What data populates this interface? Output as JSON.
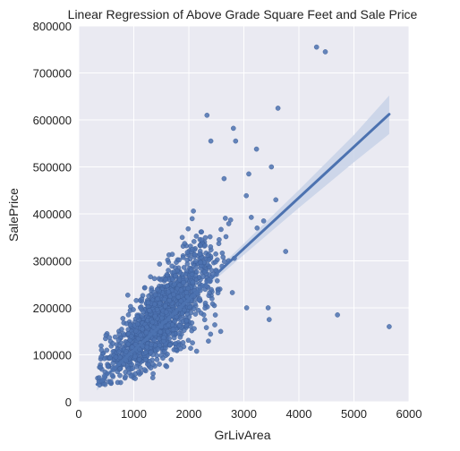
{
  "chart_data": {
    "type": "scatter",
    "title": "Linear Regression of Above Grade Square Feet and Sale Price",
    "xlabel": "GrLivArea",
    "ylabel": "SalePrice",
    "xlim": [
      0,
      6000
    ],
    "ylim": [
      0,
      800000
    ],
    "xticks": [
      "0",
      "1000",
      "2000",
      "3000",
      "4000",
      "5000",
      "6000"
    ],
    "yticks": [
      "0",
      "100000",
      "200000",
      "300000",
      "400000",
      "500000",
      "600000",
      "700000",
      "800000"
    ],
    "grid": true,
    "background_color": "#EAEAF2",
    "point_color": "#4C72B0",
    "line_color": "#4C72B0",
    "band_color": "#C8D2E8",
    "regression": {
      "x": [
        330,
        5640
      ],
      "y": [
        37000,
        612000
      ]
    },
    "confidence_band": {
      "x": [
        330,
        1000,
        1500,
        2000,
        3000,
        4000,
        5000,
        5640
      ],
      "lower": [
        24000,
        103000,
        158000,
        211000,
        313000,
        413000,
        510000,
        570000
      ],
      "upper": [
        50000,
        119000,
        170000,
        224000,
        337000,
        451000,
        568000,
        652000
      ]
    },
    "outliers": {
      "x": [
        4320,
        4480,
        5640,
        4700,
        3620,
        2330,
        2810,
        2400,
        2850,
        3230,
        3500,
        3090,
        2640,
        3360,
        3240,
        3440,
        3460,
        3050,
        3580,
        3760
      ],
      "y": [
        755000,
        745000,
        160000,
        185000,
        625000,
        610000,
        582000,
        555000,
        555000,
        538000,
        500000,
        485000,
        475000,
        385000,
        370000,
        200000,
        175000,
        200000,
        430000,
        320000
      ]
    },
    "main_cloud": {
      "x_center": 1500,
      "x_sd": 480,
      "intercept": 20000,
      "slope": 107,
      "noise_sd": 35000,
      "count": 1440
    }
  }
}
